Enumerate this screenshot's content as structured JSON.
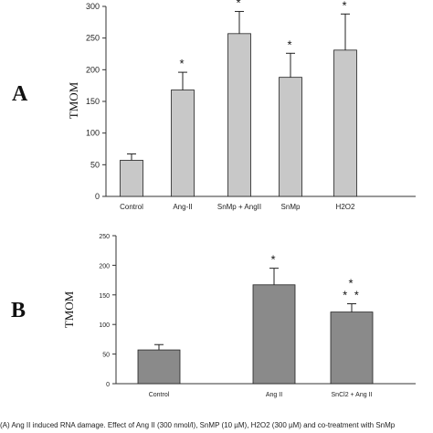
{
  "chart_data": [
    {
      "panel_label": "A",
      "type": "bar",
      "ylabel": "TMOM",
      "ylim": [
        0,
        300
      ],
      "yticks": [
        "0",
        "50",
        "100",
        "150",
        "200",
        "250",
        "300"
      ],
      "categories": [
        "Control",
        "Ang-II",
        "SnMp + AngII",
        "SnMp",
        "H2O2"
      ],
      "values": [
        57,
        168,
        257,
        188,
        231
      ],
      "errors": [
        10,
        28,
        35,
        38,
        57
      ],
      "annotations": [
        "",
        "*",
        "*",
        "*",
        "*"
      ],
      "bar_color": "#c8c8c8"
    },
    {
      "panel_label": "B",
      "type": "bar",
      "ylabel": "TMOM",
      "ylim": [
        0,
        250
      ],
      "yticks": [
        "0",
        "50",
        "100",
        "150",
        "200",
        "250"
      ],
      "categories": [
        "Control",
        "Ang II",
        "SnCl2 + Ang II"
      ],
      "values": [
        57,
        167,
        121
      ],
      "errors": [
        9,
        28,
        14
      ],
      "annotations": [
        "",
        "*",
        "*\n* *"
      ],
      "bar_color": "#8a8a8a"
    }
  ],
  "caption": "(A) Ang II induced RNA damage. Effect of Ang II (300 nmol/l), SnMP (10 µM), H2O2 (300 µM) and co-treatment with SnMp"
}
